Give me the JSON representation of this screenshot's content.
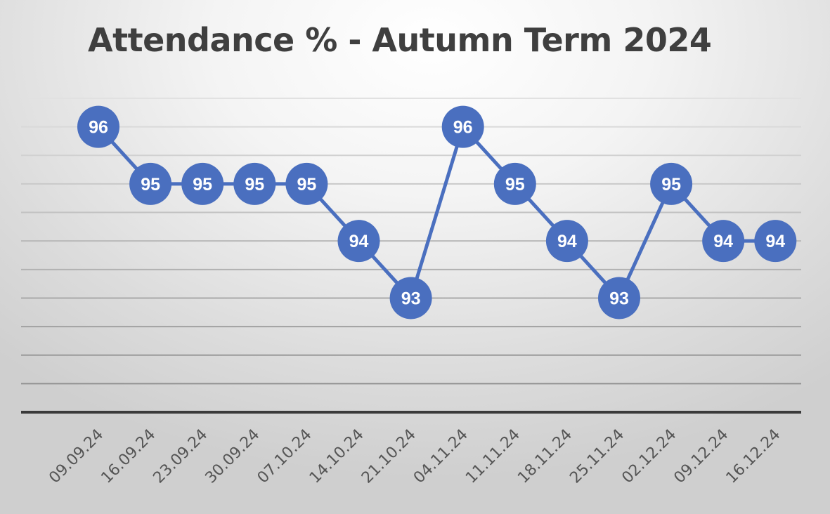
{
  "chart_data": {
    "type": "line",
    "title": "Attendance % - Autumn Term 2024",
    "xlabel": "",
    "ylabel": "",
    "categories": [
      "09.09.24",
      "16.09.24",
      "23.09.24",
      "30.09.24",
      "07.10.24",
      "14.10.24",
      "21.10.24",
      "04.11.24",
      "11.11.24",
      "18.11.24",
      "25.11.24",
      "02.12.24",
      "09.12.24",
      "16.12.24"
    ],
    "series": [
      {
        "values": [
          96,
          95,
          95,
          95,
          95,
          94,
          93,
          96,
          95,
          94,
          93,
          95,
          94,
          94
        ]
      }
    ],
    "ylim": [
      91,
      96.5
    ],
    "gridline_step": 0.5,
    "grid": true,
    "legend": "none",
    "line_color": "#4a6fbf",
    "marker_color": "#4a6fbf",
    "marker_text_color": "#ffffff"
  }
}
